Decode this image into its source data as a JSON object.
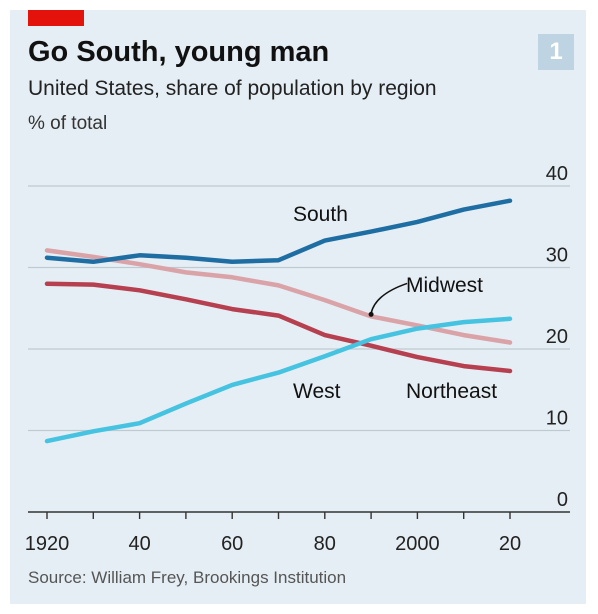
{
  "header": {
    "title": "Go South, young man",
    "subtitle": "United States, share of population by region",
    "unit": "% of total",
    "badge": "1"
  },
  "source": "Source: William Frey, Brookings Institution",
  "colors": {
    "background": "#e5eef4",
    "tag": "#e3120b",
    "badge": "#bfd4e2",
    "grid": "#bfc9d0",
    "axis": "#333333"
  },
  "chart_data": {
    "type": "line",
    "x": [
      1920,
      1930,
      1940,
      1950,
      1960,
      1970,
      1980,
      1990,
      2000,
      2010,
      2020
    ],
    "x_tick_values": [
      1920,
      1940,
      1960,
      1980,
      2000,
      2020
    ],
    "x_tick_labels": [
      "1920",
      "40",
      "60",
      "80",
      "2000",
      "20"
    ],
    "xlim": [
      1917,
      2025
    ],
    "ylim": [
      0,
      40
    ],
    "y_ticks": [
      0,
      10,
      20,
      30,
      40
    ],
    "grid": true,
    "series": [
      {
        "name": "South",
        "color": "#1f6ea3",
        "values": [
          31.2,
          30.7,
          31.5,
          31.2,
          30.7,
          30.9,
          33.3,
          34.4,
          35.6,
          37.1,
          38.2
        ]
      },
      {
        "name": "Midwest",
        "color": "#d9a3a8",
        "values": [
          32.1,
          31.3,
          30.4,
          29.4,
          28.8,
          27.8,
          26.0,
          24.0,
          22.9,
          21.7,
          20.8
        ]
      },
      {
        "name": "Northeast",
        "color": "#b6404f",
        "values": [
          28.0,
          27.9,
          27.2,
          26.1,
          24.9,
          24.1,
          21.7,
          20.4,
          19.0,
          17.9,
          17.3
        ]
      },
      {
        "name": "West",
        "color": "#45c3e0",
        "values": [
          8.7,
          9.9,
          10.9,
          13.3,
          15.6,
          17.1,
          19.1,
          21.2,
          22.5,
          23.3,
          23.7
        ]
      }
    ],
    "annotations": {
      "midwest_pointer_year": 1990
    }
  }
}
